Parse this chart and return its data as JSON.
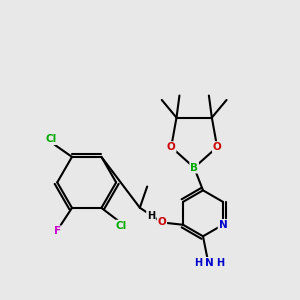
{
  "bg_color": "#e8e8e8",
  "bond_color": "#000000",
  "bond_width": 1.5,
  "atom_colors": {
    "C": "#000000",
    "H": "#000000",
    "N": "#0000cc",
    "O": "#cc0000",
    "B": "#00aa00",
    "Cl": "#00aa00",
    "F": "#cc00cc"
  },
  "font_size": 7.5,
  "small_font": 6.0
}
